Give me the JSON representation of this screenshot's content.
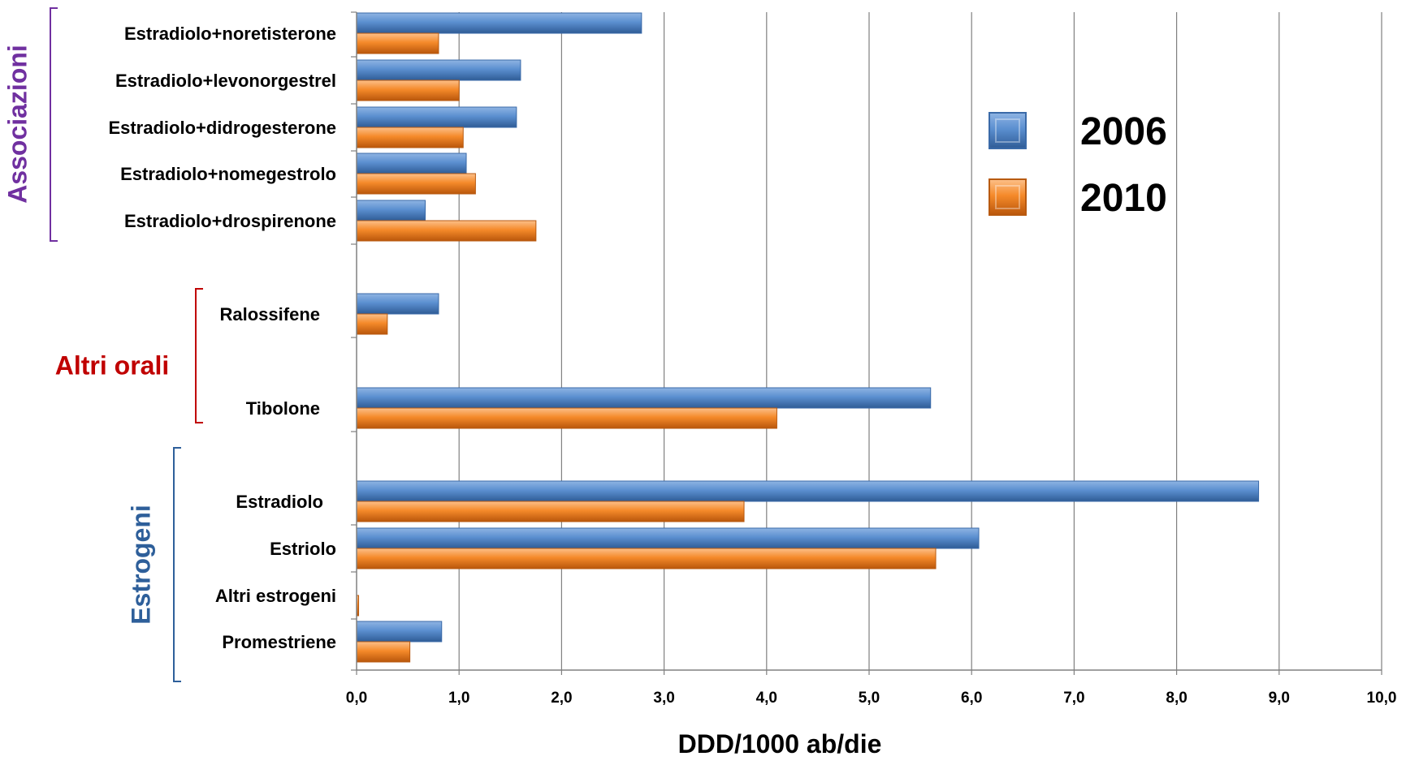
{
  "chart_data": {
    "type": "bar",
    "orientation": "horizontal",
    "categories": [
      "Estradiolo+noretisterone",
      "Estradiolo+levonorgestrel",
      "Estradiolo+didrogesterone",
      "Estradiolo+nomegestrolo",
      "Estradiolo+drospirenone",
      "Ralossifene",
      "Tibolone",
      "Estradiolo",
      "Estriolo",
      "Altri estrogeni",
      "Promestriene"
    ],
    "series": [
      {
        "name": "2006",
        "color": "#4F81BD",
        "values": [
          2.78,
          1.6,
          1.56,
          1.07,
          0.67,
          0.8,
          5.6,
          8.8,
          6.07,
          0.0,
          0.83
        ]
      },
      {
        "name": "2010",
        "color": "#F79646",
        "values": [
          0.8,
          1.0,
          1.04,
          1.16,
          1.75,
          0.3,
          4.1,
          3.78,
          5.65,
          0.02,
          0.52
        ]
      }
    ],
    "groups": [
      {
        "label": "Associazioni",
        "color": "#7030A0",
        "categories": [
          "Estradiolo+noretisterone",
          "Estradiolo+levonorgestrel",
          "Estradiolo+didrogesterone",
          "Estradiolo+nomegestrolo",
          "Estradiolo+drospirenone"
        ]
      },
      {
        "label": "Altri orali",
        "color": "#C00000",
        "categories": [
          "Ralossifene",
          "Tibolone"
        ]
      },
      {
        "label": "Estrogeni",
        "color": "#2E5F9A",
        "categories": [
          "Estradiolo",
          "Estriolo",
          "Altri estrogeni",
          "Promestriene"
        ]
      }
    ],
    "xlabel": "DDD/1000 ab/die",
    "xlim": [
      0,
      10
    ],
    "xticks": [
      "0,0",
      "1,0",
      "2,0",
      "3,0",
      "4,0",
      "5,0",
      "6,0",
      "7,0",
      "8,0",
      "9,0",
      "10,0"
    ],
    "grid": true,
    "legend_position": "right"
  }
}
